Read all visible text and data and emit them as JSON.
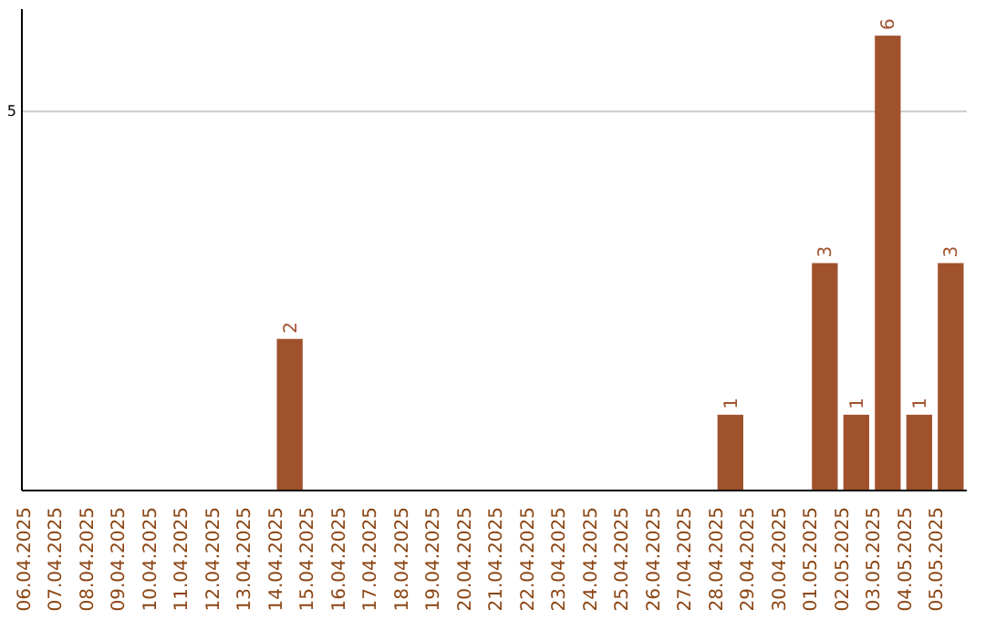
{
  "chart_data": {
    "type": "bar",
    "categories": [
      "06.04.2025",
      "07.04.2025",
      "08.04.2025",
      "09.04.2025",
      "10.04.2025",
      "11.04.2025",
      "12.04.2025",
      "13.04.2025",
      "14.04.2025",
      "15.04.2025",
      "16.04.2025",
      "17.04.2025",
      "18.04.2025",
      "19.04.2025",
      "20.04.2025",
      "21.04.2025",
      "22.04.2025",
      "23.04.2025",
      "24.04.2025",
      "25.04.2025",
      "26.04.2025",
      "27.04.2025",
      "28.04.2025",
      "29.04.2025",
      "30.04.2025",
      "01.05.2025",
      "02.05.2025",
      "03.05.2025",
      "04.05.2025",
      "05.05.2025"
    ],
    "values": [
      0,
      0,
      0,
      0,
      0,
      0,
      0,
      0,
      2,
      0,
      0,
      0,
      0,
      0,
      0,
      0,
      0,
      0,
      0,
      0,
      0,
      0,
      1,
      0,
      0,
      3,
      1,
      6,
      1,
      3
    ],
    "value_labels": [
      null,
      null,
      null,
      null,
      null,
      null,
      null,
      null,
      "2",
      null,
      null,
      null,
      null,
      null,
      null,
      null,
      null,
      null,
      null,
      null,
      null,
      null,
      "1",
      null,
      null,
      "3",
      "1",
      "6",
      "1",
      "3"
    ],
    "color": "#a0522d",
    "ylim": [
      0,
      6.35
    ],
    "yticks": [
      5
    ],
    "grid": "y"
  }
}
